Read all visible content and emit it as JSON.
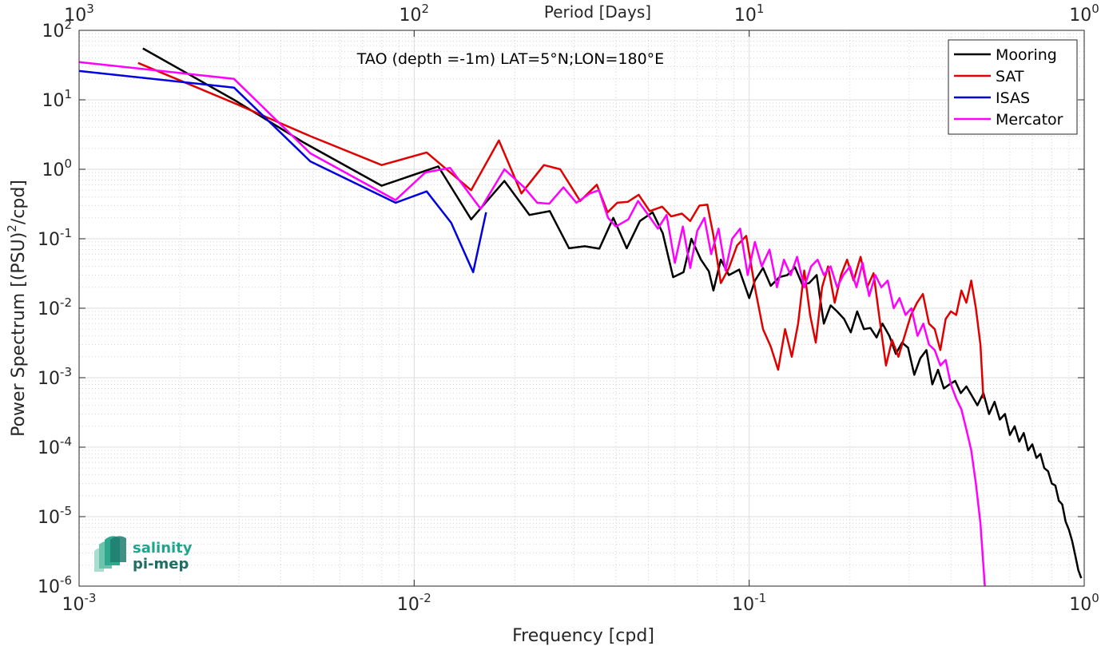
{
  "chart_data": {
    "type": "line",
    "annotation": "TAO (depth =-1m) LAT=5°N;LON=180°E",
    "xlabel": "Frequency [cpd]",
    "ylabel": "Power Spectrum [(PSU)",
    "ylabel_exp": "2",
    "ylabel_suffix": "/cpd]",
    "top_axis_label": "Period [Days]",
    "xscale": "log",
    "yscale": "log",
    "xlim": [
      0.001,
      1
    ],
    "ylim": [
      1e-06,
      100
    ],
    "grid": true,
    "legend_position": "top-right",
    "x_ticks": [
      {
        "value": 0.001,
        "base": "10",
        "exp": "-3"
      },
      {
        "value": 0.01,
        "base": "10",
        "exp": "-2"
      },
      {
        "value": 0.1,
        "base": "10",
        "exp": "-1"
      },
      {
        "value": 1,
        "base": "10",
        "exp": "0"
      }
    ],
    "y_ticks": [
      {
        "value": 1e-06,
        "base": "10",
        "exp": "-6"
      },
      {
        "value": 1e-05,
        "base": "10",
        "exp": "-5"
      },
      {
        "value": 0.0001,
        "base": "10",
        "exp": "-4"
      },
      {
        "value": 0.001,
        "base": "10",
        "exp": "-3"
      },
      {
        "value": 0.01,
        "base": "10",
        "exp": "-2"
      },
      {
        "value": 0.1,
        "base": "10",
        "exp": "-1"
      },
      {
        "value": 1,
        "base": "10",
        "exp": "0"
      },
      {
        "value": 10,
        "base": "10",
        "exp": "1"
      },
      {
        "value": 100,
        "base": "10",
        "exp": "2"
      }
    ],
    "top_ticks": [
      {
        "value": 0.001,
        "base": "10",
        "exp": "3"
      },
      {
        "value": 0.01,
        "base": "10",
        "exp": "2"
      },
      {
        "value": 0.1,
        "base": "10",
        "exp": "1"
      },
      {
        "value": 1,
        "base": "10",
        "exp": "0"
      }
    ],
    "series": [
      {
        "name": "Mooring",
        "color": "#000000",
        "points": [
          [
            0.00155,
            55
          ],
          [
            0.0029,
            10
          ],
          [
            0.0047,
            2.4
          ],
          [
            0.008,
            0.58
          ],
          [
            0.0118,
            1.1
          ],
          [
            0.0148,
            0.19
          ],
          [
            0.0186,
            0.68
          ],
          [
            0.0221,
            0.22
          ],
          [
            0.0254,
            0.25
          ],
          [
            0.029,
            0.073
          ],
          [
            0.0323,
            0.078
          ],
          [
            0.0357,
            0.072
          ],
          [
            0.0393,
            0.2
          ],
          [
            0.0431,
            0.073
          ],
          [
            0.0472,
            0.18
          ],
          [
            0.0515,
            0.24
          ],
          [
            0.0552,
            0.12
          ],
          [
            0.0593,
            0.028
          ],
          [
            0.0637,
            0.033
          ],
          [
            0.0672,
            0.1
          ],
          [
            0.0718,
            0.05
          ],
          [
            0.0758,
            0.034
          ],
          [
            0.0782,
            0.018
          ],
          [
            0.0823,
            0.05
          ],
          [
            0.087,
            0.03
          ],
          [
            0.0934,
            0.036
          ],
          [
            0.1,
            0.014
          ],
          [
            0.104,
            0.025
          ],
          [
            0.11,
            0.038
          ],
          [
            0.116,
            0.021
          ],
          [
            0.123,
            0.028
          ],
          [
            0.13,
            0.03
          ],
          [
            0.137,
            0.039
          ],
          [
            0.144,
            0.022
          ],
          [
            0.151,
            0.023
          ],
          [
            0.159,
            0.03
          ],
          [
            0.167,
            0.006
          ],
          [
            0.175,
            0.011
          ],
          [
            0.183,
            0.009
          ],
          [
            0.192,
            0.007
          ],
          [
            0.201,
            0.0045
          ],
          [
            0.21,
            0.009
          ],
          [
            0.22,
            0.005
          ],
          [
            0.23,
            0.0052
          ],
          [
            0.24,
            0.0038
          ],
          [
            0.25,
            0.006
          ],
          [
            0.262,
            0.004
          ],
          [
            0.274,
            0.0022
          ],
          [
            0.286,
            0.0032
          ],
          [
            0.298,
            0.0027
          ],
          [
            0.311,
            0.0011
          ],
          [
            0.324,
            0.0019
          ],
          [
            0.338,
            0.0025
          ],
          [
            0.352,
            0.0008
          ],
          [
            0.366,
            0.0013
          ],
          [
            0.381,
            0.0007
          ],
          [
            0.396,
            0.0008
          ],
          [
            0.412,
            0.0009
          ],
          [
            0.428,
            0.0006
          ],
          [
            0.445,
            0.00075
          ],
          [
            0.462,
            0.00055
          ],
          [
            0.48,
            0.0004
          ],
          [
            0.5,
            0.0006
          ],
          [
            0.52,
            0.0003
          ],
          [
            0.54,
            0.00045
          ],
          [
            0.56,
            0.00025
          ],
          [
            0.58,
            0.0003
          ],
          [
            0.6,
            0.00015
          ],
          [
            0.62,
            0.0002
          ],
          [
            0.64,
            0.00012
          ],
          [
            0.66,
            0.00016
          ],
          [
            0.68,
            9e-05
          ],
          [
            0.7,
            0.00011
          ],
          [
            0.72,
            7e-05
          ],
          [
            0.74,
            8e-05
          ],
          [
            0.76,
            5e-05
          ],
          [
            0.78,
            4.5e-05
          ],
          [
            0.8,
            3e-05
          ],
          [
            0.82,
            2.8e-05
          ],
          [
            0.84,
            1.7e-05
          ],
          [
            0.86,
            1.5e-05
          ],
          [
            0.88,
            8.5e-06
          ],
          [
            0.9,
            6.5e-06
          ],
          [
            0.92,
            4.5e-06
          ],
          [
            0.94,
            2.8e-06
          ],
          [
            0.96,
            1.7e-06
          ],
          [
            0.98,
            1.3e-06
          ]
        ]
      },
      {
        "name": "SAT",
        "color": "#e00000",
        "points": [
          [
            0.0015,
            34
          ],
          [
            0.0029,
            9
          ],
          [
            0.0049,
            3
          ],
          [
            0.008,
            1.15
          ],
          [
            0.0109,
            1.75
          ],
          [
            0.0148,
            0.5
          ],
          [
            0.0179,
            2.6
          ],
          [
            0.0209,
            0.45
          ],
          [
            0.0244,
            1.15
          ],
          [
            0.0273,
            1.0
          ],
          [
            0.0313,
            0.35
          ],
          [
            0.0351,
            0.6
          ],
          [
            0.0378,
            0.24
          ],
          [
            0.0404,
            0.33
          ],
          [
            0.0434,
            0.34
          ],
          [
            0.0468,
            0.43
          ],
          [
            0.0505,
            0.25
          ],
          [
            0.055,
            0.29
          ],
          [
            0.0585,
            0.21
          ],
          [
            0.063,
            0.23
          ],
          [
            0.0667,
            0.18
          ],
          [
            0.071,
            0.3
          ],
          [
            0.075,
            0.31
          ],
          [
            0.078,
            0.12
          ],
          [
            0.0823,
            0.023
          ],
          [
            0.087,
            0.038
          ],
          [
            0.092,
            0.08
          ],
          [
            0.098,
            0.11
          ],
          [
            0.104,
            0.02
          ],
          [
            0.11,
            0.005
          ],
          [
            0.116,
            0.0028
          ],
          [
            0.122,
            0.0013
          ],
          [
            0.128,
            0.005
          ],
          [
            0.134,
            0.002
          ],
          [
            0.14,
            0.006
          ],
          [
            0.146,
            0.035
          ],
          [
            0.152,
            0.008
          ],
          [
            0.158,
            0.0032
          ],
          [
            0.165,
            0.02
          ],
          [
            0.172,
            0.04
          ],
          [
            0.18,
            0.012
          ],
          [
            0.188,
            0.03
          ],
          [
            0.196,
            0.05
          ],
          [
            0.205,
            0.025
          ],
          [
            0.215,
            0.055
          ],
          [
            0.225,
            0.02
          ],
          [
            0.235,
            0.032
          ],
          [
            0.245,
            0.007
          ],
          [
            0.256,
            0.0015
          ],
          [
            0.267,
            0.0035
          ],
          [
            0.279,
            0.002
          ],
          [
            0.291,
            0.004
          ],
          [
            0.304,
            0.008
          ],
          [
            0.317,
            0.012
          ],
          [
            0.33,
            0.016
          ],
          [
            0.344,
            0.006
          ],
          [
            0.358,
            0.005
          ],
          [
            0.372,
            0.0025
          ],
          [
            0.386,
            0.007
          ],
          [
            0.4,
            0.009
          ],
          [
            0.415,
            0.008
          ],
          [
            0.43,
            0.018
          ],
          [
            0.445,
            0.012
          ],
          [
            0.46,
            0.025
          ],
          [
            0.475,
            0.01
          ],
          [
            0.49,
            0.003
          ],
          [
            0.5,
            0.0005
          ]
        ]
      },
      {
        "name": "ISAS",
        "color": "#0000e0",
        "points": [
          [
            0.001,
            26
          ],
          [
            0.0029,
            15
          ],
          [
            0.0049,
            1.3
          ],
          [
            0.0088,
            0.33
          ],
          [
            0.0109,
            0.48
          ],
          [
            0.0129,
            0.17
          ],
          [
            0.015,
            0.033
          ],
          [
            0.0164,
            0.24
          ]
        ]
      },
      {
        "name": "Mercator",
        "color": "#ff00ff",
        "points": [
          [
            0.001,
            35
          ],
          [
            0.0029,
            20
          ],
          [
            0.0049,
            1.7
          ],
          [
            0.0088,
            0.36
          ],
          [
            0.0108,
            0.9
          ],
          [
            0.0128,
            1.05
          ],
          [
            0.0158,
            0.27
          ],
          [
            0.0186,
            1.0
          ],
          [
            0.0213,
            0.55
          ],
          [
            0.0233,
            0.33
          ],
          [
            0.0253,
            0.32
          ],
          [
            0.0279,
            0.55
          ],
          [
            0.0305,
            0.33
          ],
          [
            0.0335,
            0.45
          ],
          [
            0.0356,
            0.5
          ],
          [
            0.0379,
            0.2
          ],
          [
            0.04,
            0.15
          ],
          [
            0.0436,
            0.19
          ],
          [
            0.0466,
            0.35
          ],
          [
            0.05,
            0.22
          ],
          [
            0.0534,
            0.14
          ],
          [
            0.0567,
            0.22
          ],
          [
            0.06,
            0.045
          ],
          [
            0.0634,
            0.15
          ],
          [
            0.0667,
            0.038
          ],
          [
            0.07,
            0.13
          ],
          [
            0.0735,
            0.2
          ],
          [
            0.077,
            0.06
          ],
          [
            0.081,
            0.14
          ],
          [
            0.085,
            0.035
          ],
          [
            0.089,
            0.1
          ],
          [
            0.094,
            0.14
          ],
          [
            0.099,
            0.03
          ],
          [
            0.104,
            0.09
          ],
          [
            0.109,
            0.04
          ],
          [
            0.115,
            0.07
          ],
          [
            0.121,
            0.02
          ],
          [
            0.127,
            0.05
          ],
          [
            0.133,
            0.03
          ],
          [
            0.139,
            0.055
          ],
          [
            0.146,
            0.02
          ],
          [
            0.153,
            0.04
          ],
          [
            0.16,
            0.05
          ],
          [
            0.167,
            0.03
          ],
          [
            0.175,
            0.04
          ],
          [
            0.183,
            0.02
          ],
          [
            0.191,
            0.03
          ],
          [
            0.2,
            0.04
          ],
          [
            0.209,
            0.02
          ],
          [
            0.218,
            0.045
          ],
          [
            0.228,
            0.015
          ],
          [
            0.238,
            0.03
          ],
          [
            0.248,
            0.02
          ],
          [
            0.259,
            0.025
          ],
          [
            0.27,
            0.01
          ],
          [
            0.281,
            0.014
          ],
          [
            0.293,
            0.008
          ],
          [
            0.305,
            0.01
          ],
          [
            0.318,
            0.004
          ],
          [
            0.331,
            0.006
          ],
          [
            0.344,
            0.003
          ],
          [
            0.358,
            0.0025
          ],
          [
            0.372,
            0.0015
          ],
          [
            0.386,
            0.0018
          ],
          [
            0.4,
            0.0008
          ],
          [
            0.415,
            0.0005
          ],
          [
            0.43,
            0.00035
          ],
          [
            0.445,
            0.00018
          ],
          [
            0.46,
            9e-05
          ],
          [
            0.475,
            3e-05
          ],
          [
            0.49,
            8e-06
          ],
          [
            0.505,
            1e-06
          ]
        ]
      }
    ],
    "logo": {
      "line1": "salinity",
      "line2": "pi-mep"
    }
  }
}
